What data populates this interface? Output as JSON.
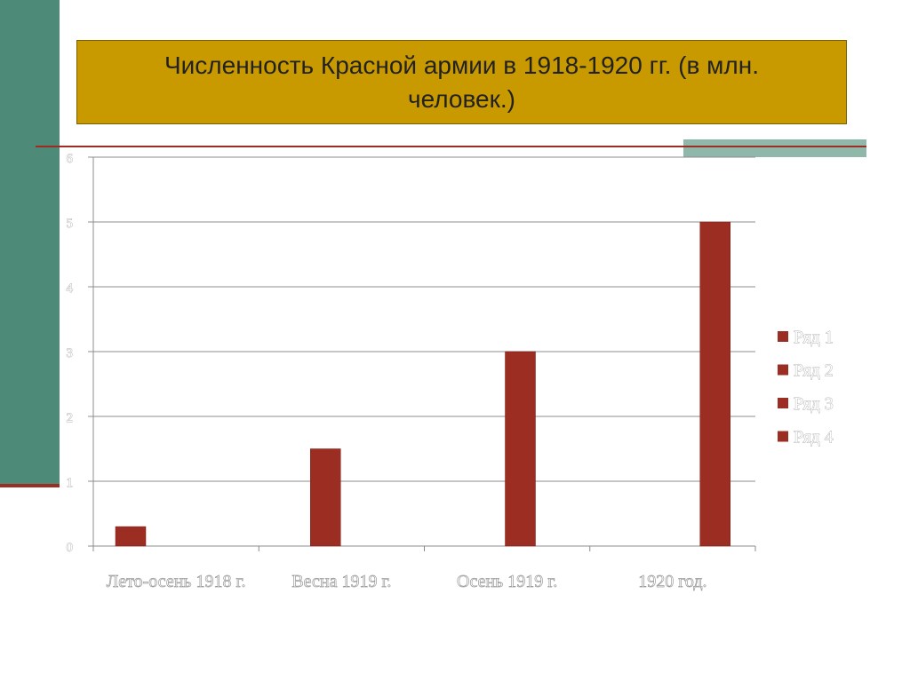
{
  "chart_data": {
    "type": "bar",
    "title": "Численность Красной армии в 1918-1920 гг. (в млн. человек.)",
    "categories": [
      "Лето-осень 1918 г.",
      "Весна 1919 г.",
      "Осень 1919 г.",
      "1920 год."
    ],
    "series": [
      {
        "name": "Ряд 1",
        "color": "#9b2d23",
        "values": [
          0.3,
          null,
          null,
          null
        ]
      },
      {
        "name": "Ряд 2",
        "color": "#9b2d23",
        "values": [
          null,
          1.5,
          null,
          null
        ]
      },
      {
        "name": "Ряд 3",
        "color": "#9b2d23",
        "values": [
          null,
          null,
          3,
          null
        ]
      },
      {
        "name": "Ряд 4",
        "color": "#9b2d23",
        "values": [
          null,
          null,
          null,
          5
        ]
      }
    ],
    "ylim": [
      0,
      6
    ],
    "yticks": [
      0,
      1,
      2,
      3,
      4,
      5,
      6
    ],
    "grid": true,
    "legend": "right"
  }
}
